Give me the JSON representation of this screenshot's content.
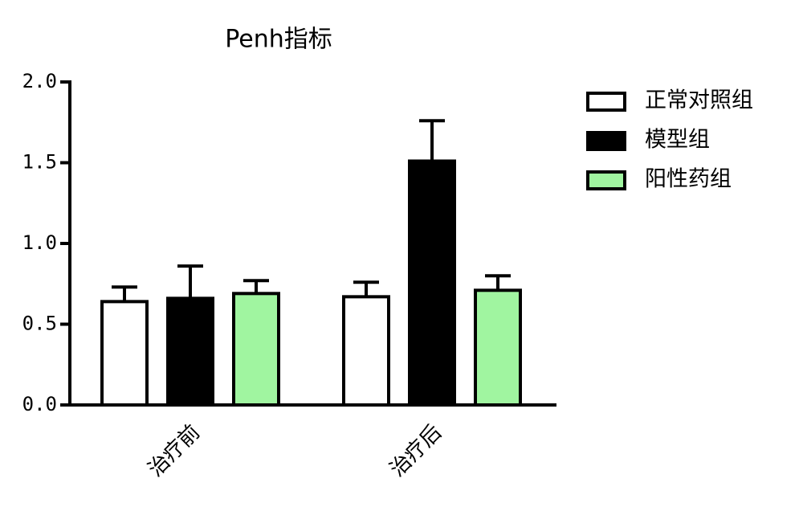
{
  "chart_data": {
    "type": "bar",
    "title": "Penh指标",
    "categories": [
      "治疗前",
      "治疗后"
    ],
    "series": [
      {
        "name": "正常对照组",
        "color": "#ffffff",
        "values": [
          0.64,
          0.67
        ],
        "errors": [
          0.09,
          0.09
        ]
      },
      {
        "name": "模型组",
        "color": "#000000",
        "values": [
          0.66,
          1.51
        ],
        "errors": [
          0.2,
          0.25
        ]
      },
      {
        "name": "阳性药组",
        "color": "#a0f5a0",
        "values": [
          0.69,
          0.71
        ],
        "errors": [
          0.08,
          0.09
        ]
      }
    ],
    "ylim": [
      0,
      2
    ],
    "yticks": [
      {
        "value": 0,
        "label": "0.0"
      },
      0.5,
      {
        "value": 1,
        "label": "1.0"
      },
      1.5,
      {
        "value": 2,
        "label": "2.0"
      }
    ],
    "grid": false
  }
}
